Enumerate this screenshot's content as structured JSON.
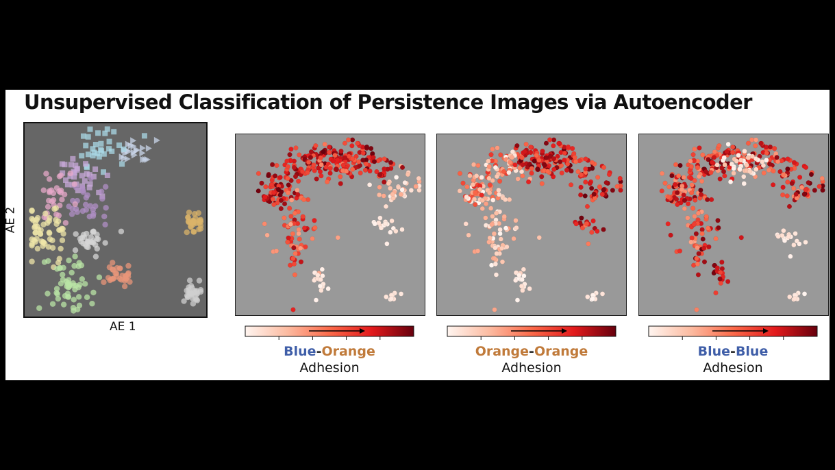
{
  "title": "Unsupervised Classification of Persistence Images via Autoencoder",
  "colors": {
    "blue_text": "#3f5ea8",
    "orange_text": "#c07a3a",
    "overview_bg": "#666666",
    "map_bg": "#999999",
    "colormap": [
      "#fff5f0",
      "#fcbba1",
      "#fb6a4a",
      "#e31a1c",
      "#67000d"
    ]
  },
  "overview": {
    "xlabel": "AE 1",
    "ylabel": "AE 2"
  },
  "panels": [
    {
      "word1": "Blue",
      "dash": "-",
      "word2": "Orange",
      "word1_color": "blue",
      "word2_color": "orange",
      "sub": "Adhesion"
    },
    {
      "word1": "Orange",
      "dash": "-",
      "word2": "Orange",
      "word1_color": "orange",
      "word2_color": "orange",
      "sub": "Adhesion"
    },
    {
      "word1": "Blue",
      "dash": "-",
      "word2": "Blue",
      "word1_color": "blue",
      "word2_color": "blue",
      "sub": "Adhesion"
    }
  ],
  "chart_data": [
    {
      "type": "scatter",
      "title": "",
      "xlabel": "AE 1",
      "ylabel": "AE 2",
      "grid": false,
      "clusters": [
        {
          "shape": "triangle",
          "color": "#c9d6ea",
          "center": [
            0.6,
            0.85
          ]
        },
        {
          "shape": "square",
          "color": "#a9d8e6",
          "center": [
            0.42,
            0.86
          ]
        },
        {
          "shape": "square",
          "color": "#c7a8d8",
          "center": [
            0.3,
            0.72
          ]
        },
        {
          "shape": "circle",
          "color": "#b08fc6",
          "center": [
            0.33,
            0.58
          ]
        },
        {
          "shape": "circle",
          "color": "#e6a8c8",
          "center": [
            0.18,
            0.63
          ]
        },
        {
          "shape": "circle",
          "color": "#efe6a8",
          "center": [
            0.1,
            0.45
          ]
        },
        {
          "shape": "circle",
          "color": "#b9e4a6",
          "center": [
            0.25,
            0.17
          ]
        },
        {
          "shape": "circle",
          "color": "#d9b36a",
          "center": [
            0.93,
            0.48
          ]
        },
        {
          "shape": "circle",
          "color": "#e8957a",
          "center": [
            0.52,
            0.22
          ]
        },
        {
          "shape": "circle",
          "color": "#cfcfcf",
          "center": [
            0.93,
            0.12
          ]
        },
        {
          "shape": "circle",
          "color": "#d6d6d6",
          "center": [
            0.35,
            0.4
          ]
        }
      ]
    },
    {
      "type": "scatter",
      "title": "",
      "colorbar": "Reds",
      "colorbar_label": "Blue-Orange Adhesion"
    },
    {
      "type": "scatter",
      "title": "",
      "colorbar": "Reds",
      "colorbar_label": "Orange-Orange Adhesion"
    },
    {
      "type": "scatter",
      "title": "",
      "colorbar": "Reds",
      "colorbar_label": "Blue-Blue Adhesion"
    }
  ]
}
